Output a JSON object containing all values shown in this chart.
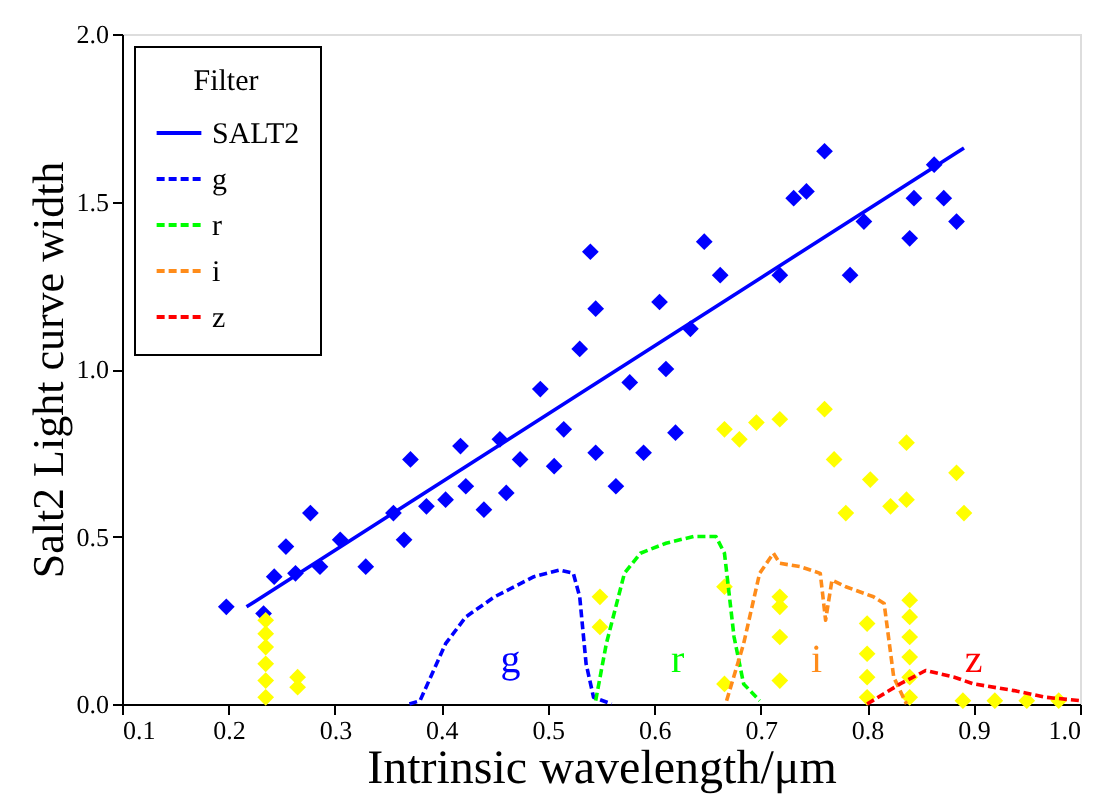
{
  "chart_data": {
    "type": "scatter",
    "xlabel": "Intrinsic wavelength/μm",
    "ylabel": "Salt2 Light curve width",
    "legend_title": "Filter",
    "legend": "top left",
    "grid": false,
    "xlim": [
      0.1,
      1.0
    ],
    "xticks": [
      0.1,
      0.2,
      0.3,
      0.4,
      0.5,
      0.6,
      0.7,
      0.8,
      0.9,
      {
        "value": 1,
        "label": "1.0"
      }
    ],
    "ylim": [
      0.0,
      2.0
    ],
    "yticks": [
      {
        "value": 0,
        "label": "0.0"
      },
      0.5,
      {
        "value": 1,
        "label": "1.0"
      },
      1.5,
      {
        "value": 2,
        "label": "2.0"
      }
    ],
    "series": [
      {
        "marker": "diamond",
        "color": "#0000ff",
        "x": [
          0.198,
          0.233,
          0.243,
          0.254,
          0.263,
          0.277,
          0.286,
          0.305,
          0.329,
          0.355,
          0.365,
          0.371,
          0.386,
          0.404,
          0.418,
          0.423,
          0.44,
          0.455,
          0.461,
          0.474,
          0.493,
          0.506,
          0.515,
          0.53,
          0.54,
          0.545,
          0.545,
          0.564,
          0.577,
          0.59,
          0.605,
          0.611,
          0.62,
          0.634,
          0.647,
          0.662,
          0.718,
          0.731,
          0.743,
          0.76,
          0.784,
          0.797,
          0.84,
          0.844,
          0.863,
          0.872,
          0.884
        ],
        "values": [
          0.29,
          0.27,
          0.38,
          0.47,
          0.39,
          0.57,
          0.41,
          0.49,
          0.41,
          0.57,
          0.49,
          0.73,
          0.59,
          0.61,
          0.77,
          0.65,
          0.58,
          0.79,
          0.63,
          0.73,
          0.94,
          0.71,
          0.82,
          1.06,
          1.35,
          1.18,
          0.75,
          0.65,
          0.96,
          0.75,
          1.2,
          1.0,
          0.81,
          1.12,
          1.38,
          1.28,
          1.28,
          1.51,
          1.53,
          1.65,
          1.28,
          1.44,
          1.39,
          1.51,
          1.61,
          1.51,
          1.44
        ]
      },
      {
        "marker": "diamond",
        "color": "#ffff00",
        "x": [
          0.235,
          0.235,
          0.235,
          0.235,
          0.235,
          0.235,
          0.265,
          0.265,
          0.549,
          0.549,
          0.666,
          0.666,
          0.718,
          0.718,
          0.718,
          0.718,
          0.666,
          0.68,
          0.696,
          0.718,
          0.76,
          0.769,
          0.78,
          0.803,
          0.822,
          0.837,
          0.837,
          0.884,
          0.891,
          0.8,
          0.8,
          0.8,
          0.8,
          0.84,
          0.84,
          0.84,
          0.84,
          0.84,
          0.84,
          0.89,
          0.92,
          0.95,
          0.98
        ],
        "values": [
          0.02,
          0.07,
          0.12,
          0.17,
          0.21,
          0.25,
          0.05,
          0.08,
          0.32,
          0.23,
          0.35,
          0.06,
          0.32,
          0.29,
          0.2,
          0.07,
          0.82,
          0.79,
          0.84,
          0.85,
          0.88,
          0.73,
          0.57,
          0.67,
          0.59,
          0.78,
          0.61,
          0.69,
          0.57,
          0.24,
          0.15,
          0.08,
          0.02,
          0.31,
          0.26,
          0.2,
          0.14,
          0.08,
          0.02,
          0.01,
          0.01,
          0.01,
          0.01
        ]
      },
      {
        "type": "line",
        "name": "SALT2",
        "color": "#0000ff",
        "line_style": "solid",
        "x": [
          0.217,
          0.891
        ],
        "values": [
          0.29,
          1.66
        ]
      },
      {
        "type": "line",
        "name": "g",
        "color": "#0000ff",
        "line_style": "dashed",
        "x": [
          0.37,
          0.38,
          0.404,
          0.423,
          0.45,
          0.487,
          0.511,
          0.524,
          0.53,
          0.536,
          0.543,
          0.56
        ],
        "values": [
          0.0,
          0.01,
          0.18,
          0.26,
          0.32,
          0.38,
          0.4,
          0.39,
          0.32,
          0.12,
          0.02,
          0.0
        ]
      },
      {
        "type": "line",
        "name": "r",
        "color": "#00ff00",
        "line_style": "dashed",
        "x": [
          0.545,
          0.555,
          0.572,
          0.587,
          0.611,
          0.637,
          0.658,
          0.666,
          0.675,
          0.684,
          0.699
        ],
        "values": [
          0.01,
          0.18,
          0.39,
          0.45,
          0.48,
          0.5,
          0.5,
          0.45,
          0.2,
          0.06,
          0.01
        ]
      },
      {
        "type": "line",
        "name": "i",
        "color": "#ff8c1a",
        "line_style": "dashed",
        "x": [
          0.668,
          0.684,
          0.699,
          0.712,
          0.718,
          0.737,
          0.756,
          0.761,
          0.767,
          0.78,
          0.806,
          0.816,
          0.825,
          0.837
        ],
        "values": [
          0.01,
          0.18,
          0.39,
          0.45,
          0.42,
          0.41,
          0.39,
          0.25,
          0.37,
          0.35,
          0.32,
          0.3,
          0.08,
          0.0
        ]
      },
      {
        "type": "line",
        "name": "z",
        "color": "#ff0000",
        "line_style": "dashed",
        "x": [
          0.8,
          0.831,
          0.855,
          0.882,
          0.9,
          0.938,
          0.968,
          1.0
        ],
        "values": [
          0.0,
          0.06,
          0.1,
          0.08,
          0.06,
          0.04,
          0.02,
          0.01
        ]
      }
    ]
  }
}
